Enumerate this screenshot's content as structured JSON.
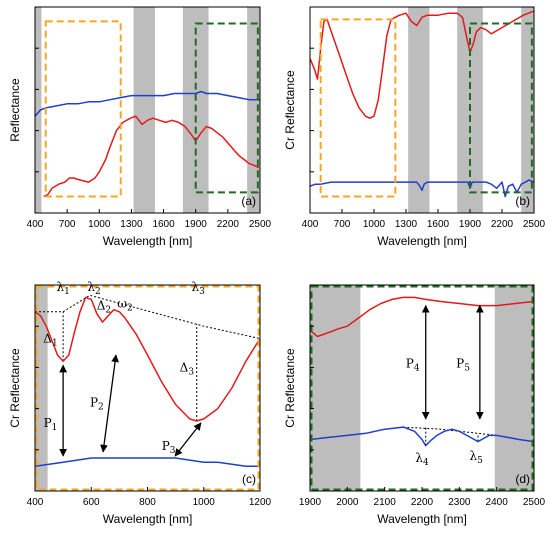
{
  "colors": {
    "red": "#e31a1c",
    "blue": "#1f3fcc",
    "orange": "#f5a623",
    "green": "#1f6b1f",
    "band": "#bdbdbd"
  },
  "chart_data": [
    {
      "id": "a",
      "type": "line",
      "panel_label": "(a)",
      "xlabel": "Wavelength [nm]",
      "ylabel": "Reflectance",
      "xlim": [
        400,
        2500
      ],
      "ylim": [
        0,
        1
      ],
      "xticks": [
        400,
        700,
        1000,
        1300,
        1600,
        1900,
        2200,
        2500
      ],
      "yticks": [
        0,
        0.2,
        0.4,
        0.6,
        0.8,
        1.0
      ],
      "show_y_tick_labels": false,
      "absorption_bands": [
        [
          400,
          460
        ],
        [
          1320,
          1520
        ],
        [
          1780,
          2020
        ],
        [
          2380,
          2500
        ]
      ],
      "boxes": [
        {
          "color": "orange",
          "x": [
            500,
            1200
          ],
          "y": [
            0.08,
            0.93
          ]
        },
        {
          "color": "green",
          "x": [
            1900,
            2480
          ],
          "y": [
            0.1,
            0.92
          ]
        }
      ],
      "series": [
        {
          "color": "red",
          "x": [
            480,
            520,
            560,
            620,
            680,
            720,
            760,
            820,
            900,
            960,
            1000,
            1060,
            1100,
            1160,
            1220,
            1290,
            1340,
            1400,
            1450,
            1500,
            1560,
            1620,
            1680,
            1740,
            1800,
            1860,
            1900,
            1950,
            2000,
            2050,
            2100,
            2150,
            2200,
            2250,
            2300,
            2350,
            2400,
            2450,
            2490
          ],
          "y": [
            0.08,
            0.09,
            0.12,
            0.14,
            0.15,
            0.17,
            0.17,
            0.16,
            0.15,
            0.17,
            0.2,
            0.26,
            0.32,
            0.4,
            0.44,
            0.46,
            0.47,
            0.43,
            0.45,
            0.46,
            0.45,
            0.44,
            0.45,
            0.44,
            0.42,
            0.38,
            0.35,
            0.39,
            0.42,
            0.41,
            0.39,
            0.37,
            0.34,
            0.31,
            0.28,
            0.26,
            0.24,
            0.23,
            0.22
          ]
        },
        {
          "color": "blue",
          "x": [
            400,
            450,
            500,
            600,
            700,
            800,
            900,
            1000,
            1100,
            1200,
            1300,
            1400,
            1500,
            1600,
            1700,
            1800,
            1900,
            1950,
            2000,
            2100,
            2200,
            2300,
            2400,
            2500
          ],
          "y": [
            0.47,
            0.5,
            0.51,
            0.52,
            0.53,
            0.53,
            0.54,
            0.54,
            0.55,
            0.56,
            0.57,
            0.57,
            0.57,
            0.57,
            0.58,
            0.58,
            0.58,
            0.59,
            0.58,
            0.58,
            0.57,
            0.56,
            0.55,
            0.55
          ]
        }
      ]
    },
    {
      "id": "b",
      "type": "line",
      "panel_label": "(b)",
      "xlabel": "Wavelength [nm]",
      "ylabel": "Cr Reflectance",
      "xlim": [
        400,
        2500
      ],
      "ylim": [
        0,
        1
      ],
      "xticks": [
        400,
        700,
        1000,
        1300,
        1600,
        1900,
        2200,
        2500
      ],
      "yticks": [
        0,
        0.2,
        0.4,
        0.6,
        0.8,
        1.0
      ],
      "show_y_tick_labels": false,
      "absorption_bands": [
        [
          1320,
          1520
        ],
        [
          1780,
          2020
        ],
        [
          2380,
          2500
        ]
      ],
      "boxes": [
        {
          "color": "orange",
          "x": [
            500,
            1200
          ],
          "y": [
            0.08,
            0.94
          ]
        },
        {
          "color": "green",
          "x": [
            1900,
            2480
          ],
          "y": [
            0.1,
            0.92
          ]
        }
      ],
      "series": [
        {
          "color": "red",
          "x": [
            400,
            440,
            470,
            500,
            530,
            560,
            600,
            640,
            680,
            720,
            760,
            800,
            860,
            920,
            960,
            1000,
            1040,
            1080,
            1120,
            1160,
            1200,
            1240,
            1300,
            1350,
            1400,
            1450,
            1500,
            1600,
            1700,
            1780,
            1830,
            1870,
            1900,
            1930,
            1960,
            2000,
            2050,
            2100,
            2200,
            2300,
            2400,
            2500
          ],
          "y": [
            0.75,
            0.7,
            0.65,
            0.8,
            0.93,
            0.94,
            0.88,
            0.82,
            0.76,
            0.7,
            0.64,
            0.58,
            0.51,
            0.47,
            0.46,
            0.47,
            0.55,
            0.7,
            0.86,
            0.94,
            0.95,
            0.96,
            0.97,
            0.93,
            0.91,
            0.95,
            0.96,
            0.96,
            0.97,
            0.97,
            0.95,
            0.85,
            0.78,
            0.82,
            0.88,
            0.9,
            0.89,
            0.87,
            0.9,
            0.93,
            0.96,
            0.98
          ]
        },
        {
          "color": "blue",
          "x": [
            400,
            450,
            500,
            600,
            700,
            800,
            900,
            1000,
            1100,
            1200,
            1300,
            1400,
            1430,
            1450,
            1470,
            1500,
            1600,
            1700,
            1800,
            1880,
            1900,
            1920,
            1950,
            2000,
            2050,
            2100,
            2150,
            2200,
            2230,
            2260,
            2300,
            2340,
            2360,
            2380,
            2420,
            2450,
            2500
          ],
          "y": [
            0.13,
            0.14,
            0.14,
            0.15,
            0.15,
            0.15,
            0.15,
            0.15,
            0.15,
            0.15,
            0.15,
            0.15,
            0.13,
            0.11,
            0.14,
            0.15,
            0.15,
            0.15,
            0.15,
            0.15,
            0.12,
            0.15,
            0.15,
            0.15,
            0.15,
            0.14,
            0.12,
            0.15,
            0.08,
            0.13,
            0.14,
            0.1,
            0.12,
            0.14,
            0.15,
            0.16,
            0.15
          ]
        }
      ]
    },
    {
      "id": "c",
      "type": "line",
      "panel_label": "(c)",
      "xlabel": "Wavelength [nm]",
      "ylabel": "Cr Reflectance",
      "xlim": [
        400,
        1200
      ],
      "ylim": [
        0,
        1
      ],
      "xticks": [
        400,
        600,
        800,
        1000,
        1200
      ],
      "yticks": [
        0,
        0.2,
        0.4,
        0.6,
        0.8,
        1.0
      ],
      "show_y_tick_labels": false,
      "absorption_bands": [
        [
          400,
          445
        ]
      ],
      "boxes": [
        {
          "color": "orange",
          "x": [
            400,
            1200
          ],
          "y": [
            0,
            1
          ]
        }
      ],
      "series": [
        {
          "color": "red",
          "x": [
            400,
            420,
            440,
            460,
            480,
            500,
            520,
            540,
            560,
            580,
            600,
            620,
            640,
            660,
            680,
            700,
            720,
            740,
            760,
            800,
            850,
            900,
            950,
            975,
            1000,
            1050,
            1100,
            1150,
            1200
          ],
          "y": [
            0.87,
            0.85,
            0.8,
            0.73,
            0.66,
            0.63,
            0.66,
            0.77,
            0.87,
            0.94,
            0.93,
            0.86,
            0.82,
            0.85,
            0.88,
            0.87,
            0.84,
            0.8,
            0.76,
            0.66,
            0.53,
            0.42,
            0.35,
            0.34,
            0.35,
            0.4,
            0.5,
            0.63,
            0.74
          ]
        },
        {
          "color": "blue",
          "x": [
            400,
            450,
            500,
            550,
            600,
            650,
            700,
            750,
            800,
            850,
            900,
            950,
            1000,
            1050,
            1100,
            1150,
            1200
          ],
          "y": [
            0.12,
            0.13,
            0.14,
            0.15,
            0.16,
            0.16,
            0.16,
            0.16,
            0.16,
            0.16,
            0.16,
            0.15,
            0.14,
            0.14,
            0.13,
            0.12,
            0.12
          ]
        }
      ],
      "hull_line": {
        "x": [
          400,
          500,
          595,
          1000,
          1200
        ],
        "y": [
          0.87,
          0.87,
          0.95,
          0.8,
          0.74
        ]
      },
      "annotations": [
        {
          "text": "λ1",
          "x": 500,
          "y": 0.97
        },
        {
          "text": "λ2",
          "x": 610,
          "y": 0.97
        },
        {
          "text": "λ3",
          "x": 980,
          "y": 0.97
        },
        {
          "text": "Δ1",
          "x": 455,
          "y": 0.72
        },
        {
          "text": "Δ2",
          "x": 645,
          "y": 0.88
        },
        {
          "text": "ω2",
          "x": 720,
          "y": 0.89
        },
        {
          "text": "Δ3",
          "x": 940,
          "y": 0.58
        },
        {
          "text": "P1",
          "x": 455,
          "y": 0.31
        },
        {
          "text": "P2",
          "x": 620,
          "y": 0.41
        },
        {
          "text": "P3",
          "x": 875,
          "y": 0.2
        }
      ],
      "arrows": [
        {
          "x1": 500,
          "y1": 0.61,
          "x2": 500,
          "y2": 0.17
        },
        {
          "x1": 688,
          "y1": 0.66,
          "x2": 642,
          "y2": 0.19
        },
        {
          "x1": 990,
          "y1": 0.33,
          "x2": 898,
          "y2": 0.17
        }
      ],
      "verticals": [
        {
          "x": 500,
          "y1": 0.63,
          "y2": 0.87
        },
        {
          "x": 975,
          "y1": 0.34,
          "y2": 0.81
        }
      ]
    },
    {
      "id": "d",
      "type": "line",
      "panel_label": "(d)",
      "xlabel": "Wavelength [nm]",
      "ylabel": "Cr Reflectance",
      "xlim": [
        1900,
        2500
      ],
      "ylim": [
        0,
        1
      ],
      "xticks": [
        1900,
        2000,
        2100,
        2200,
        2300,
        2400,
        2500
      ],
      "yticks": [
        0,
        0.2,
        0.4,
        0.6,
        0.8,
        1.0
      ],
      "show_y_tick_labels": false,
      "absorption_bands": [
        [
          1900,
          2035
        ],
        [
          2395,
          2500
        ]
      ],
      "boxes": [
        {
          "color": "green",
          "x": [
            1900,
            2500
          ],
          "y": [
            0,
            1
          ]
        }
      ],
      "series": [
        {
          "color": "red",
          "x": [
            1900,
            1920,
            1950,
            1980,
            2000,
            2030,
            2060,
            2090,
            2120,
            2150,
            2180,
            2210,
            2250,
            2300,
            2350,
            2400,
            2450,
            2500
          ],
          "y": [
            0.78,
            0.75,
            0.77,
            0.79,
            0.8,
            0.84,
            0.88,
            0.91,
            0.93,
            0.94,
            0.94,
            0.93,
            0.92,
            0.91,
            0.9,
            0.9,
            0.91,
            0.92
          ]
        },
        {
          "color": "blue",
          "x": [
            1900,
            1950,
            2000,
            2050,
            2100,
            2150,
            2180,
            2200,
            2210,
            2220,
            2240,
            2260,
            2280,
            2300,
            2320,
            2340,
            2350,
            2360,
            2380,
            2400,
            2430,
            2460,
            2500
          ],
          "y": [
            0.25,
            0.26,
            0.27,
            0.28,
            0.3,
            0.31,
            0.29,
            0.25,
            0.22,
            0.24,
            0.27,
            0.29,
            0.3,
            0.29,
            0.27,
            0.25,
            0.24,
            0.25,
            0.27,
            0.27,
            0.26,
            0.25,
            0.24
          ]
        }
      ],
      "hull_line": {
        "x": [
          2150,
          2250,
          2350,
          2400
        ],
        "y": [
          0.31,
          0.3,
          0.28,
          0.27
        ]
      },
      "annotations": [
        {
          "text": "P4",
          "x": 2175,
          "y": 0.6
        },
        {
          "text": "P5",
          "x": 2310,
          "y": 0.6
        },
        {
          "text": "λ4",
          "x": 2200,
          "y": 0.14
        },
        {
          "text": "λ5",
          "x": 2345,
          "y": 0.15
        }
      ],
      "arrows": [
        {
          "x1": 2210,
          "y1": 0.9,
          "x2": 2210,
          "y2": 0.35
        },
        {
          "x1": 2355,
          "y1": 0.9,
          "x2": 2355,
          "y2": 0.35
        }
      ],
      "verticals": [
        {
          "x": 2210,
          "y1": 0.22,
          "y2": 0.31
        },
        {
          "x": 2350,
          "y1": 0.24,
          "y2": 0.28
        }
      ]
    }
  ]
}
